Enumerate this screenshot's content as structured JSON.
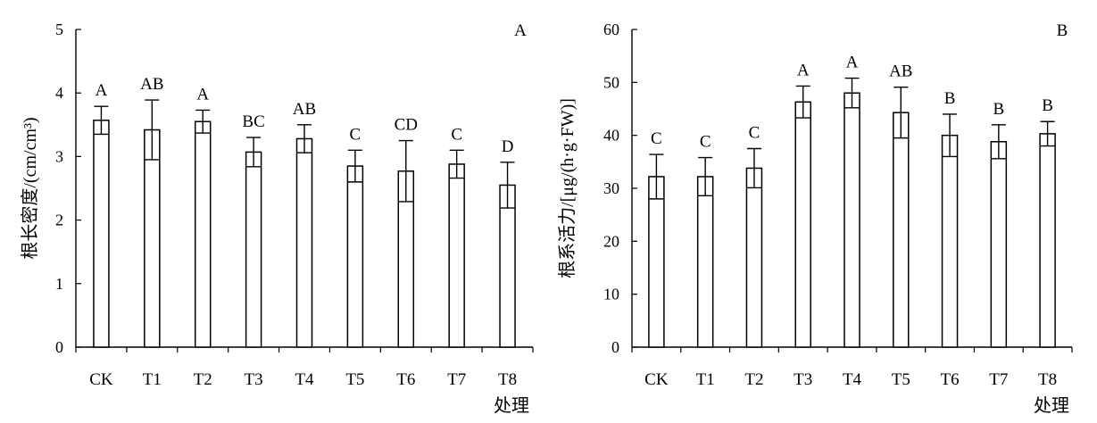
{
  "chart_data": [
    {
      "type": "bar",
      "panel_label": "A",
      "title": "",
      "xlabel": "处理",
      "ylabel": "根长密度/(cm/cm³)",
      "categories": [
        "CK",
        "T1",
        "T2",
        "T3",
        "T4",
        "T5",
        "T6",
        "T7",
        "T8"
      ],
      "values": [
        3.57,
        3.42,
        3.55,
        3.07,
        3.28,
        2.85,
        2.77,
        2.88,
        2.55
      ],
      "errors": [
        0.22,
        0.47,
        0.18,
        0.23,
        0.22,
        0.25,
        0.48,
        0.22,
        0.36
      ],
      "significance": [
        "A",
        "AB",
        "A",
        "BC",
        "AB",
        "C",
        "CD",
        "C",
        "D"
      ],
      "ylim": [
        0,
        5
      ],
      "yticks": [
        0,
        1,
        2,
        3,
        4,
        5
      ],
      "grid": false
    },
    {
      "type": "bar",
      "panel_label": "B",
      "title": "",
      "xlabel": "处理",
      "ylabel": "根系活力/[μg/(h·g·FW)]",
      "categories": [
        "CK",
        "T1",
        "T2",
        "T3",
        "T4",
        "T5",
        "T6",
        "T7",
        "T8"
      ],
      "values": [
        32.2,
        32.2,
        33.8,
        46.3,
        48.0,
        44.3,
        40.0,
        38.8,
        40.3
      ],
      "errors": [
        4.2,
        3.6,
        3.7,
        3.0,
        2.8,
        4.8,
        4.0,
        3.2,
        2.3
      ],
      "significance": [
        "C",
        "C",
        "C",
        "A",
        "A",
        "AB",
        "B",
        "B",
        "B"
      ],
      "ylim": [
        0,
        60
      ],
      "yticks": [
        0,
        10,
        20,
        30,
        40,
        50,
        60
      ],
      "grid": false
    }
  ]
}
